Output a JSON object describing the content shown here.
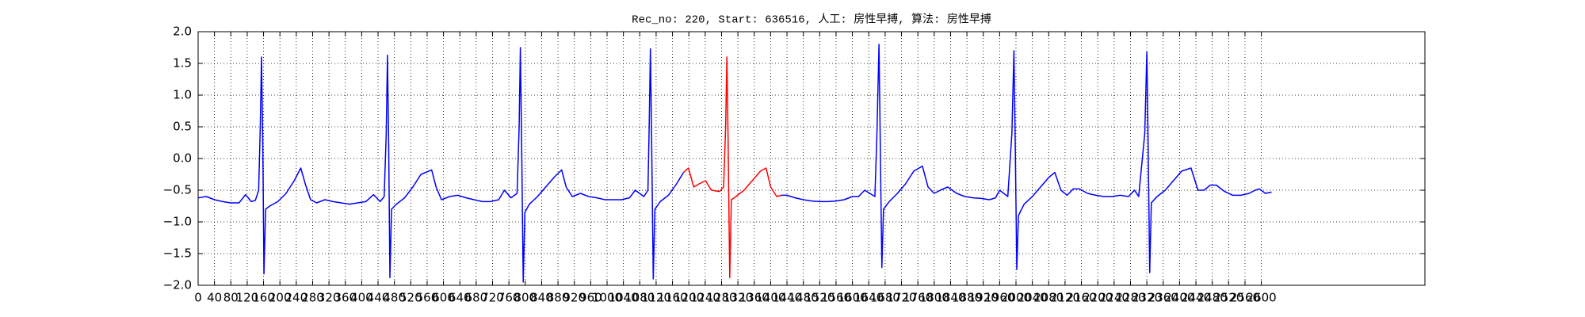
{
  "chart_data": {
    "type": "line",
    "title": "Rec_no: 220, Start: 636516, 人工: 房性早搏, 算法: 房性早搏",
    "xlim": [
      0,
      3000
    ],
    "xticks": [
      0,
      40,
      80,
      120,
      160,
      200,
      240,
      280,
      320,
      360,
      400,
      440,
      480,
      520,
      560,
      600,
      640,
      680,
      720,
      760,
      800,
      840,
      880,
      920,
      960,
      1000,
      1040,
      1080,
      1120,
      1160,
      1200,
      1240,
      1280,
      1320,
      1360,
      1400,
      1440,
      1480,
      1520,
      1560,
      1600,
      1640,
      1680,
      1720,
      1760,
      1800,
      1840,
      1880,
      1920,
      1960,
      2000,
      2040,
      2080,
      2120,
      2160,
      2200,
      2240,
      2280,
      2320,
      2360,
      2400,
      2440,
      2480,
      2520,
      2560,
      2600
    ],
    "ylim": [
      -2.0,
      2.0
    ],
    "yticks": [
      {
        "value": -2.0,
        "label": "−2.0"
      },
      {
        "value": -1.5,
        "label": "−1.5"
      },
      {
        "value": -1.0,
        "label": "−1.0"
      },
      {
        "value": -0.5,
        "label": "−0.5"
      },
      {
        "value": 0.0,
        "label": "0.0"
      },
      {
        "value": 0.5,
        "label": "0.5"
      },
      {
        "value": 1.0,
        "label": "1.0"
      },
      {
        "value": 1.5,
        "label": "1.5"
      },
      {
        "value": 2.0,
        "label": "2.0"
      }
    ],
    "grid": true,
    "series": [
      {
        "color": "#0000ff",
        "x": [
          0,
          20,
          40,
          60,
          80,
          100,
          116,
          130,
          140,
          148,
          152,
          155,
          158,
          161,
          165,
          175,
          195,
          215,
          235,
          251,
          262,
          275,
          290,
          310,
          330,
          350,
          370,
          390,
          410,
          429,
          445,
          455,
          460,
          463,
          466,
          469,
          473,
          485,
          505,
          525,
          545,
          571,
          582,
          595,
          615,
          635,
          655,
          675,
          695,
          715,
          735,
          749,
          765,
          780,
          785,
          788,
          791,
          795,
          799,
          810,
          830,
          850,
          870,
          889,
          900,
          915,
          935,
          955,
          975,
          995,
          1015,
          1035,
          1055,
          1069,
          1090,
          1100,
          1103,
          1106,
          1109,
          1113,
          1117,
          1130,
          1150,
          1170,
          1187,
          1300,
          1426,
          1440,
          1460,
          1480,
          1500,
          1520,
          1540,
          1560,
          1580,
          1600,
          1615,
          1630,
          1655,
          1660,
          1665,
          1668,
          1672,
          1676,
          1690,
          1710,
          1730,
          1750,
          1771,
          1785,
          1800,
          1815,
          1833,
          1855,
          1875,
          1895,
          1915,
          1935,
          1950,
          1960,
          1980,
          1990,
          1995,
          1998,
          2002,
          2006,
          2020,
          2040,
          2060,
          2080,
          2095,
          2110,
          2125,
          2140,
          2155,
          2175,
          2195,
          2215,
          2235,
          2255,
          2275,
          2290,
          2300,
          2315,
          2320,
          2323,
          2327,
          2331,
          2345,
          2365,
          2385,
          2405,
          2428,
          2445,
          2460,
          2475,
          2490,
          2510,
          2530,
          2550,
          2570,
          2585,
          2595,
          2610,
          2625
        ],
        "values": [
          -0.62,
          -0.6,
          -0.65,
          -0.68,
          -0.7,
          -0.7,
          -0.57,
          -0.68,
          -0.66,
          -0.5,
          0.5,
          1.6,
          0.3,
          -1.82,
          -0.8,
          -0.75,
          -0.68,
          -0.55,
          -0.35,
          -0.15,
          -0.4,
          -0.65,
          -0.7,
          -0.65,
          -0.68,
          -0.7,
          -0.72,
          -0.7,
          -0.68,
          -0.57,
          -0.68,
          -0.6,
          0.4,
          1.63,
          0.2,
          -1.88,
          -0.8,
          -0.72,
          -0.62,
          -0.45,
          -0.25,
          -0.18,
          -0.45,
          -0.65,
          -0.6,
          -0.58,
          -0.62,
          -0.65,
          -0.68,
          -0.68,
          -0.65,
          -0.5,
          -0.62,
          -0.55,
          0.5,
          1.75,
          0.3,
          -1.95,
          -0.85,
          -0.72,
          -0.6,
          -0.45,
          -0.3,
          -0.18,
          -0.45,
          -0.6,
          -0.55,
          -0.6,
          -0.62,
          -0.65,
          -0.65,
          -0.65,
          -0.62,
          -0.5,
          -0.6,
          -0.5,
          0.5,
          1.73,
          0.3,
          -1.9,
          -0.8,
          -0.68,
          -0.58,
          -0.4,
          -0.22,
          null,
          -0.58,
          -0.58,
          -0.62,
          -0.65,
          -0.67,
          -0.68,
          -0.68,
          -0.67,
          -0.65,
          -0.6,
          -0.6,
          -0.5,
          -0.6,
          0.4,
          1.8,
          0.3,
          -1.72,
          -0.8,
          -0.68,
          -0.55,
          -0.4,
          -0.2,
          -0.12,
          -0.45,
          -0.55,
          -0.5,
          -0.45,
          -0.55,
          -0.6,
          -0.62,
          -0.63,
          -0.65,
          -0.62,
          -0.5,
          -0.6,
          0.4,
          1.7,
          0.3,
          -1.75,
          -0.9,
          -0.72,
          -0.6,
          -0.45,
          -0.3,
          -0.22,
          -0.5,
          -0.58,
          -0.48,
          -0.48,
          -0.55,
          -0.58,
          -0.6,
          -0.6,
          -0.58,
          -0.6,
          -0.5,
          -0.6,
          0.4,
          1.68,
          0.3,
          -1.8,
          -0.7,
          -0.6,
          -0.5,
          -0.35,
          -0.2,
          -0.15,
          -0.5,
          -0.5,
          -0.42,
          -0.42,
          -0.52,
          -0.58,
          -0.58,
          -0.55,
          -0.5,
          -0.48,
          -0.55,
          -0.53
        ]
      },
      {
        "color": "#ff0000",
        "x": [
          1187,
          1199,
          1212,
          1225,
          1241,
          1255,
          1275,
          1285,
          1290,
          1293,
          1296,
          1300,
          1304,
          1315,
          1335,
          1355,
          1375,
          1389,
          1400,
          1415,
          1426
        ],
        "values": [
          -0.22,
          -0.15,
          -0.45,
          -0.4,
          -0.35,
          -0.5,
          -0.52,
          -0.45,
          0.5,
          1.6,
          0.3,
          -1.88,
          -0.65,
          -0.6,
          -0.5,
          -0.35,
          -0.2,
          -0.15,
          -0.45,
          -0.6,
          -0.58
        ]
      }
    ]
  }
}
